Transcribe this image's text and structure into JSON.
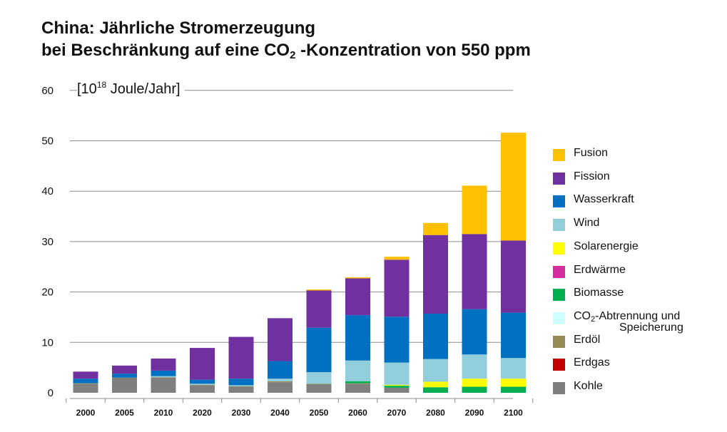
{
  "title": {
    "line1": "China: Jährliche Stromerzeugung",
    "line2_pre": "bei Beschränkung auf eine CO",
    "line2_sub": "2",
    "line2_post": " -Konzentration von 550 ppm"
  },
  "unit": {
    "pre": "[10",
    "sup": "18",
    "post": " Joule/Jahr]"
  },
  "legend": [
    {
      "label": "Fusion"
    },
    {
      "label": "Fission"
    },
    {
      "label": "Wasserkraft"
    },
    {
      "label": "Wind"
    },
    {
      "label": "Solarenergie"
    },
    {
      "label": "Erdwärme"
    },
    {
      "label": "Biomasse"
    },
    {
      "label": "CO",
      "sub": "2",
      "rest": "-Abtrennung und",
      "line2": "Speicherung"
    },
    {
      "label": "Erdöl"
    },
    {
      "label": "Erdgas"
    },
    {
      "label": "Kohle"
    }
  ],
  "chart_data": {
    "type": "bar",
    "stacked": true,
    "title": "China: Jährliche Stromerzeugung bei Beschränkung auf eine CO2 -Konzentration von 550 ppm",
    "ylabel": "[10^18 Joule/Jahr]",
    "ylim": [
      0,
      60
    ],
    "yticks": [
      0,
      10,
      20,
      30,
      40,
      50,
      60
    ],
    "grid": "horizontal",
    "legend_position": "right",
    "categories": [
      "2000",
      "2005",
      "2010",
      "2020",
      "2030",
      "2040",
      "2050",
      "2060",
      "2070",
      "2080",
      "2090",
      "2100"
    ],
    "series": [
      {
        "name": "Kohle",
        "color": "#7f7f7f",
        "values": [
          1.8,
          2.9,
          3.0,
          1.5,
          1.2,
          2.1,
          1.7,
          1.8,
          1.0,
          0,
          0,
          0
        ]
      },
      {
        "name": "Erdgas",
        "color": "#c00000",
        "values": [
          0,
          0,
          0,
          0,
          0,
          0,
          0,
          0,
          0,
          0,
          0,
          0
        ]
      },
      {
        "name": "Erdöl",
        "color": "#948a54",
        "values": [
          0.1,
          0.1,
          0.1,
          0.1,
          0.1,
          0.2,
          0.1,
          0.1,
          0,
          0,
          0,
          0
        ]
      },
      {
        "name": "CO2-Abtrennung und Speicherung",
        "color": "#ccffff",
        "values": [
          0,
          0,
          0,
          0,
          0,
          0,
          0,
          0,
          0,
          0,
          0,
          0
        ]
      },
      {
        "name": "Biomasse",
        "color": "#00b050",
        "values": [
          0,
          0,
          0,
          0,
          0,
          0,
          0,
          0.4,
          0.4,
          1.1,
          1.2,
          1.2
        ]
      },
      {
        "name": "Erdwärme",
        "color": "#d62e9f",
        "values": [
          0,
          0,
          0,
          0,
          0,
          0,
          0,
          0,
          0,
          0,
          0,
          0
        ]
      },
      {
        "name": "Solarenergie",
        "color": "#ffff00",
        "values": [
          0,
          0,
          0,
          0,
          0,
          0,
          0,
          0,
          0.2,
          1.1,
          1.6,
          1.6
        ]
      },
      {
        "name": "Wind",
        "color": "#92cddc",
        "values": [
          0,
          0,
          0.2,
          0.2,
          0.2,
          0.5,
          2.3,
          4.1,
          4.4,
          4.5,
          4.8,
          4.1
        ]
      },
      {
        "name": "Wasserkraft",
        "color": "#0070c0",
        "values": [
          0.9,
          0.8,
          1.1,
          0.8,
          1.3,
          3.5,
          8.8,
          9.0,
          9.1,
          9.0,
          9.0,
          9.0
        ]
      },
      {
        "name": "Fission",
        "color": "#7030a0",
        "values": [
          1.4,
          1.6,
          2.4,
          6.3,
          8.3,
          8.5,
          7.4,
          7.3,
          11.3,
          15.6,
          14.9,
          14.3
        ]
      },
      {
        "name": "Fusion",
        "color": "#ffc000",
        "values": [
          0,
          0,
          0,
          0,
          0,
          0,
          0.2,
          0.2,
          0.6,
          2.4,
          9.6,
          21.4
        ]
      }
    ]
  }
}
